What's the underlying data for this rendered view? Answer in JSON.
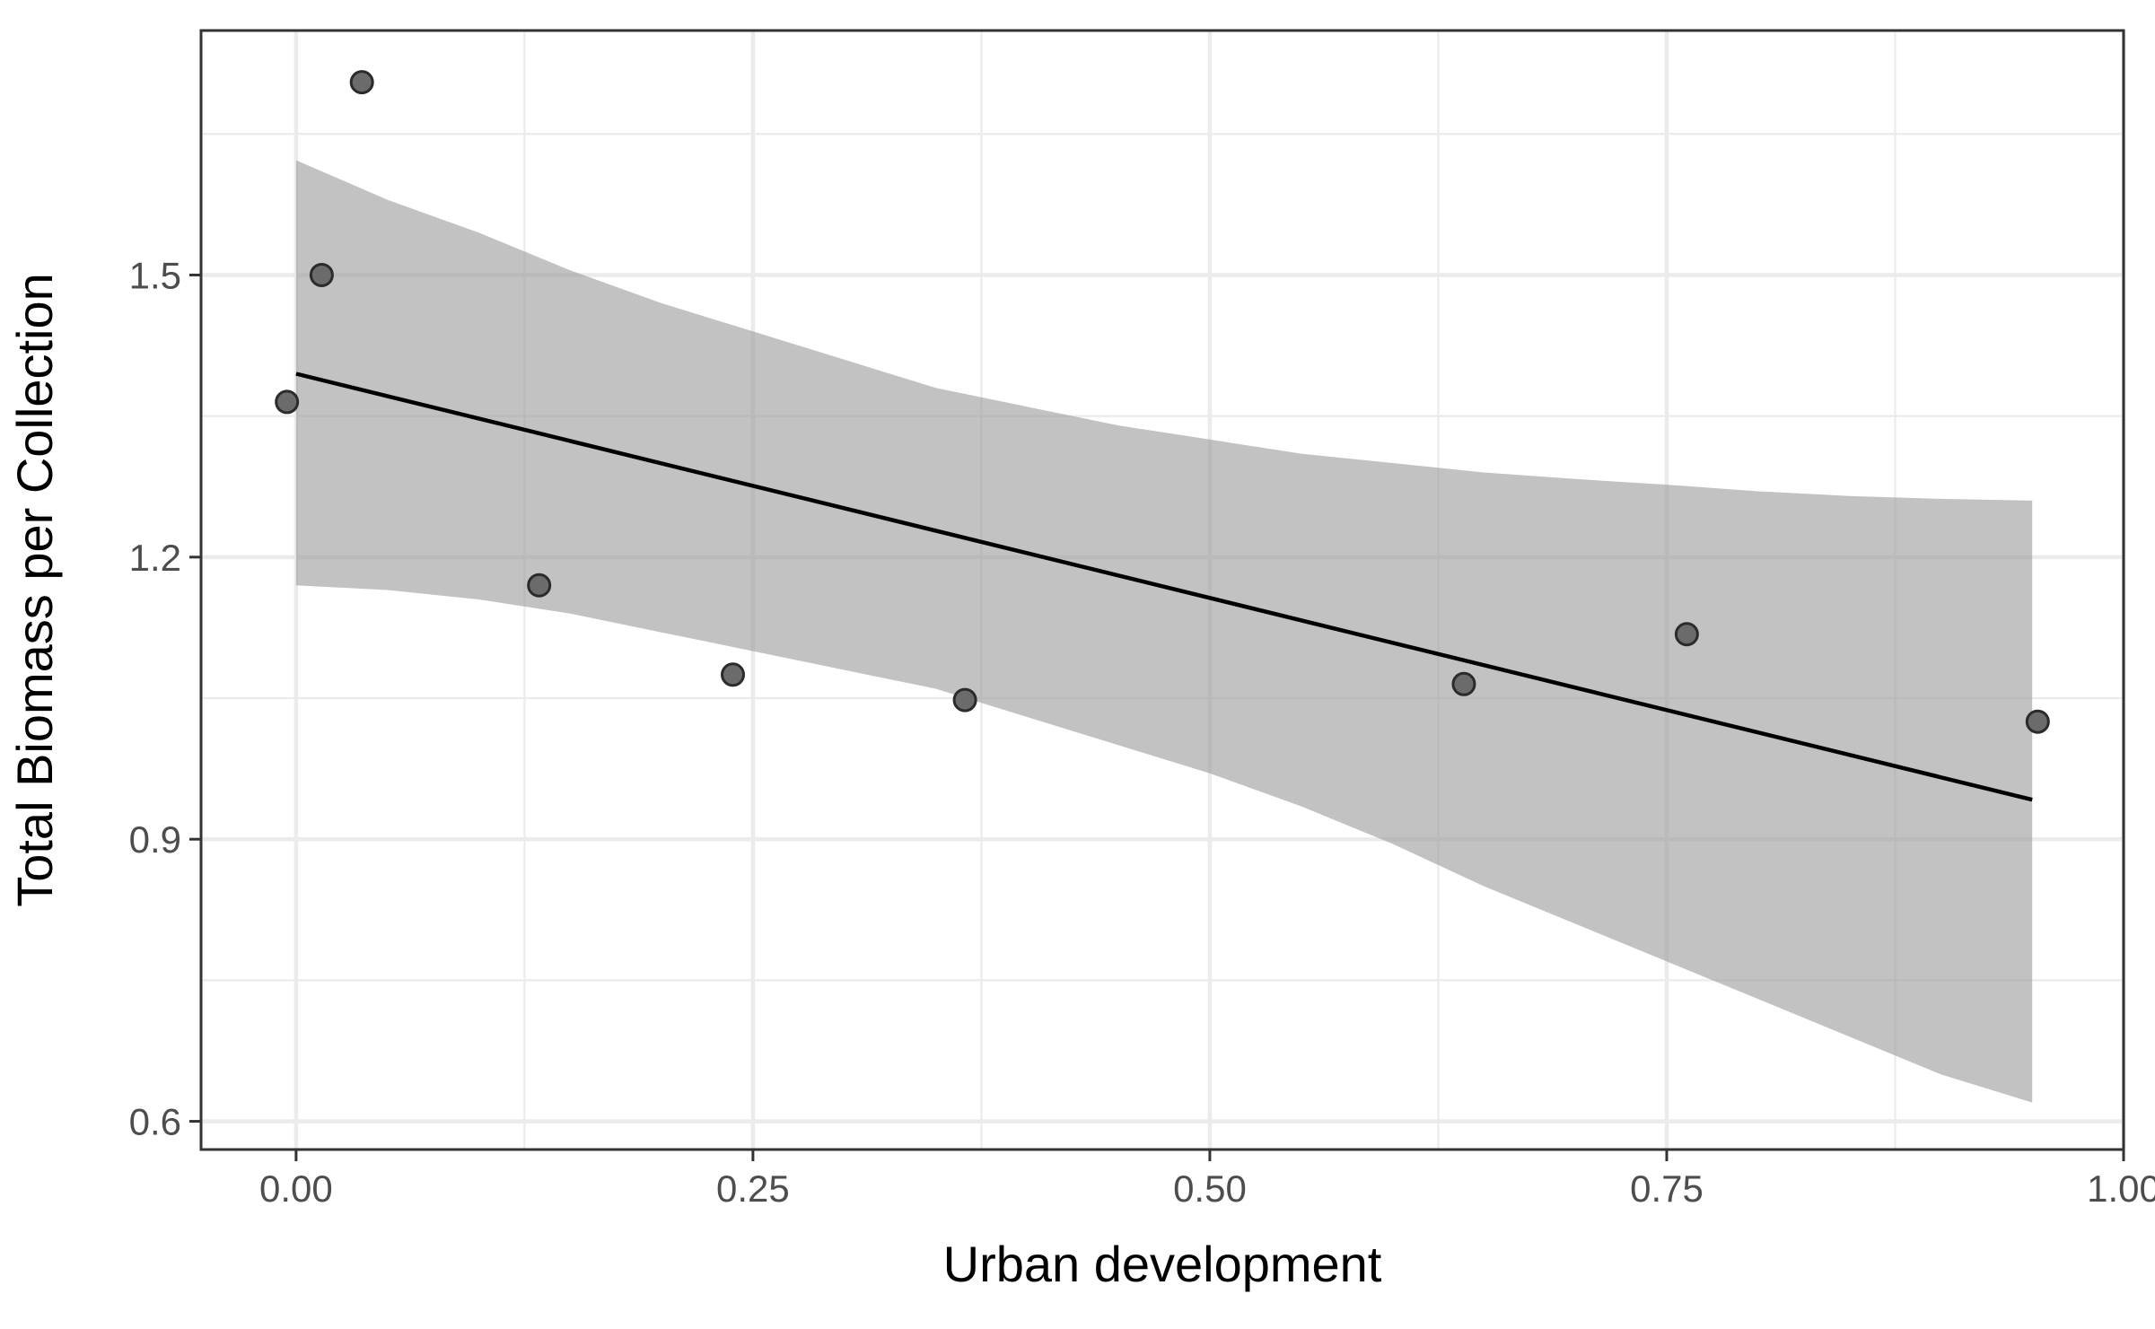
{
  "chart_data": {
    "type": "scatter",
    "title": "",
    "xlabel": "Urban development",
    "ylabel": "Total Biomass per Collection",
    "xlim": [
      -0.052,
      1.0
    ],
    "ylim": [
      0.57,
      1.76
    ],
    "x_ticks": [
      0.0,
      0.25,
      0.5,
      0.75,
      1.0
    ],
    "x_tick_labels": [
      "0.00",
      "0.25",
      "0.50",
      "0.75",
      "1.00"
    ],
    "x_minor": [
      0.125,
      0.375,
      0.625,
      0.875
    ],
    "y_ticks": [
      0.6,
      0.9,
      1.2,
      1.5
    ],
    "y_tick_labels": [
      "0.6",
      "0.9",
      "1.2",
      "1.5"
    ],
    "y_minor": [
      0.75,
      1.05,
      1.35,
      1.65
    ],
    "grid": true,
    "legend": "none",
    "points": [
      {
        "x": -0.005,
        "y": 1.365
      },
      {
        "x": 0.014,
        "y": 1.5
      },
      {
        "x": 0.036,
        "y": 1.705
      },
      {
        "x": 0.133,
        "y": 1.17
      },
      {
        "x": 0.239,
        "y": 1.075
      },
      {
        "x": 0.366,
        "y": 1.048
      },
      {
        "x": 0.639,
        "y": 1.065
      },
      {
        "x": 0.761,
        "y": 1.118
      },
      {
        "x": 0.953,
        "y": 1.025
      }
    ],
    "fit": {
      "x": [
        0.0,
        0.95
      ],
      "y": [
        1.395,
        0.942
      ]
    },
    "confidence_band": {
      "x": [
        0.0,
        0.05,
        0.1,
        0.15,
        0.2,
        0.25,
        0.3,
        0.35,
        0.4,
        0.45,
        0.5,
        0.55,
        0.6,
        0.65,
        0.7,
        0.75,
        0.8,
        0.85,
        0.9,
        0.95
      ],
      "upper": [
        1.622,
        1.58,
        1.545,
        1.505,
        1.47,
        1.44,
        1.41,
        1.38,
        1.36,
        1.34,
        1.325,
        1.31,
        1.3,
        1.29,
        1.283,
        1.277,
        1.27,
        1.265,
        1.262,
        1.26
      ],
      "lower": [
        1.17,
        1.165,
        1.155,
        1.14,
        1.12,
        1.1,
        1.08,
        1.06,
        1.03,
        1.0,
        0.97,
        0.935,
        0.895,
        0.85,
        0.81,
        0.77,
        0.73,
        0.69,
        0.65,
        0.62
      ]
    }
  }
}
